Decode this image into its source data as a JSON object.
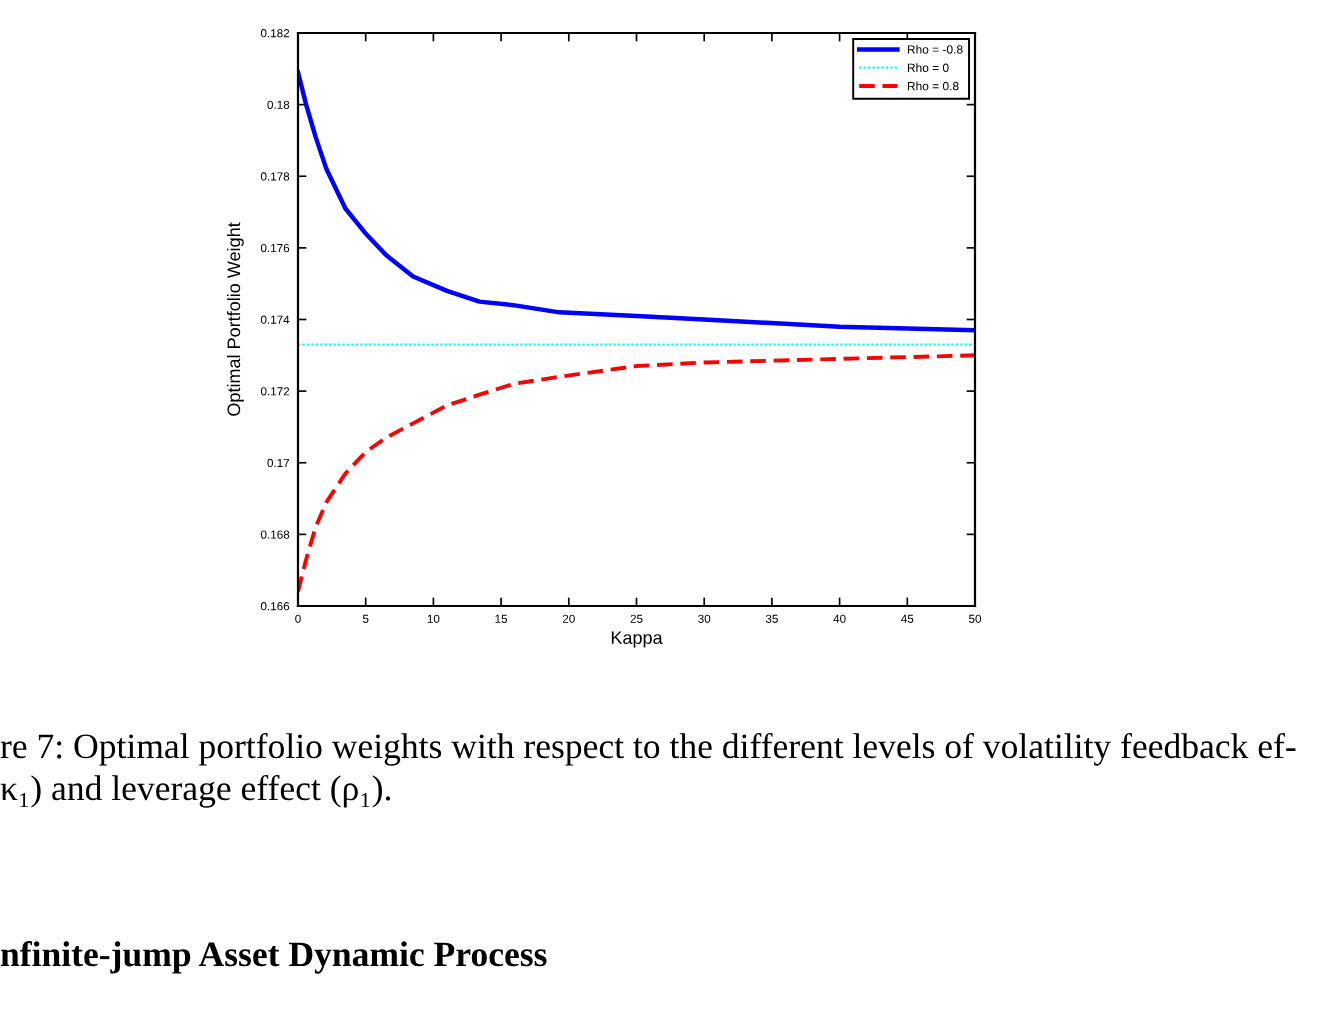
{
  "chart_data": {
    "type": "line",
    "xlabel": "Kappa",
    "ylabel": "Optimal Portfolio Weight",
    "xlim": [
      0,
      50
    ],
    "ylim": [
      0.166,
      0.182
    ],
    "xticks": [
      0,
      5,
      10,
      15,
      20,
      25,
      30,
      35,
      40,
      45,
      50
    ],
    "yticks": [
      0.166,
      0.168,
      0.17,
      0.172,
      0.174,
      0.176,
      0.178,
      0.18,
      0.182
    ],
    "legend": "top right",
    "series": [
      {
        "name": "Rho = -0.8",
        "color": "#0000ff",
        "line_style": "solid",
        "x": [
          0,
          0.6,
          1.3,
          2.1,
          3.5,
          5,
          6.5,
          8.5,
          11,
          13.4,
          15.9,
          19.3,
          25,
          30,
          40,
          50
        ],
        "values": [
          0.1809,
          0.18,
          0.1791,
          0.1782,
          0.1771,
          0.1764,
          0.1758,
          0.1752,
          0.1748,
          0.1745,
          0.1744,
          0.1742,
          0.1741,
          0.174,
          0.1738,
          0.1737
        ]
      },
      {
        "name": "Rho = 0",
        "color": "#00ffff",
        "line_style": "dotted",
        "x": [
          0,
          50
        ],
        "values": [
          0.1733,
          0.1733
        ]
      },
      {
        "name": "Rho = 0.8",
        "color": "#ff0000",
        "line_style": "dashed",
        "x": [
          0,
          0.6,
          1.3,
          2.1,
          3.5,
          5,
          6.5,
          8.5,
          11,
          13.4,
          15.9,
          19.3,
          25,
          30,
          40,
          50
        ],
        "values": [
          0.1664,
          0.1673,
          0.1682,
          0.1689,
          0.1697,
          0.1703,
          0.1707,
          0.1711,
          0.1716,
          0.1719,
          0.1722,
          0.1724,
          0.1727,
          0.1728,
          0.1729,
          0.173
        ]
      }
    ],
    "annotations": [
      "re 7: Optimal portfolio weights with respect to the different levels of volatility feedback ef-",
      "κ₁) and leverage effect (ρ₁).",
      "nfinite-jump Asset Dynamic Process"
    ]
  }
}
